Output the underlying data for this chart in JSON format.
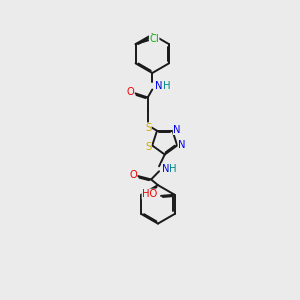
{
  "bg_color": "#ebebeb",
  "bond_color": "#1a1a1a",
  "bond_width": 1.4,
  "dbo": 0.055,
  "atom_colors": {
    "N": "#0000ee",
    "O": "#ee0000",
    "S": "#ccaa00",
    "Cl": "#00bb00",
    "NH": "#008888",
    "HO": "#ee0000"
  },
  "fs": 7.2
}
